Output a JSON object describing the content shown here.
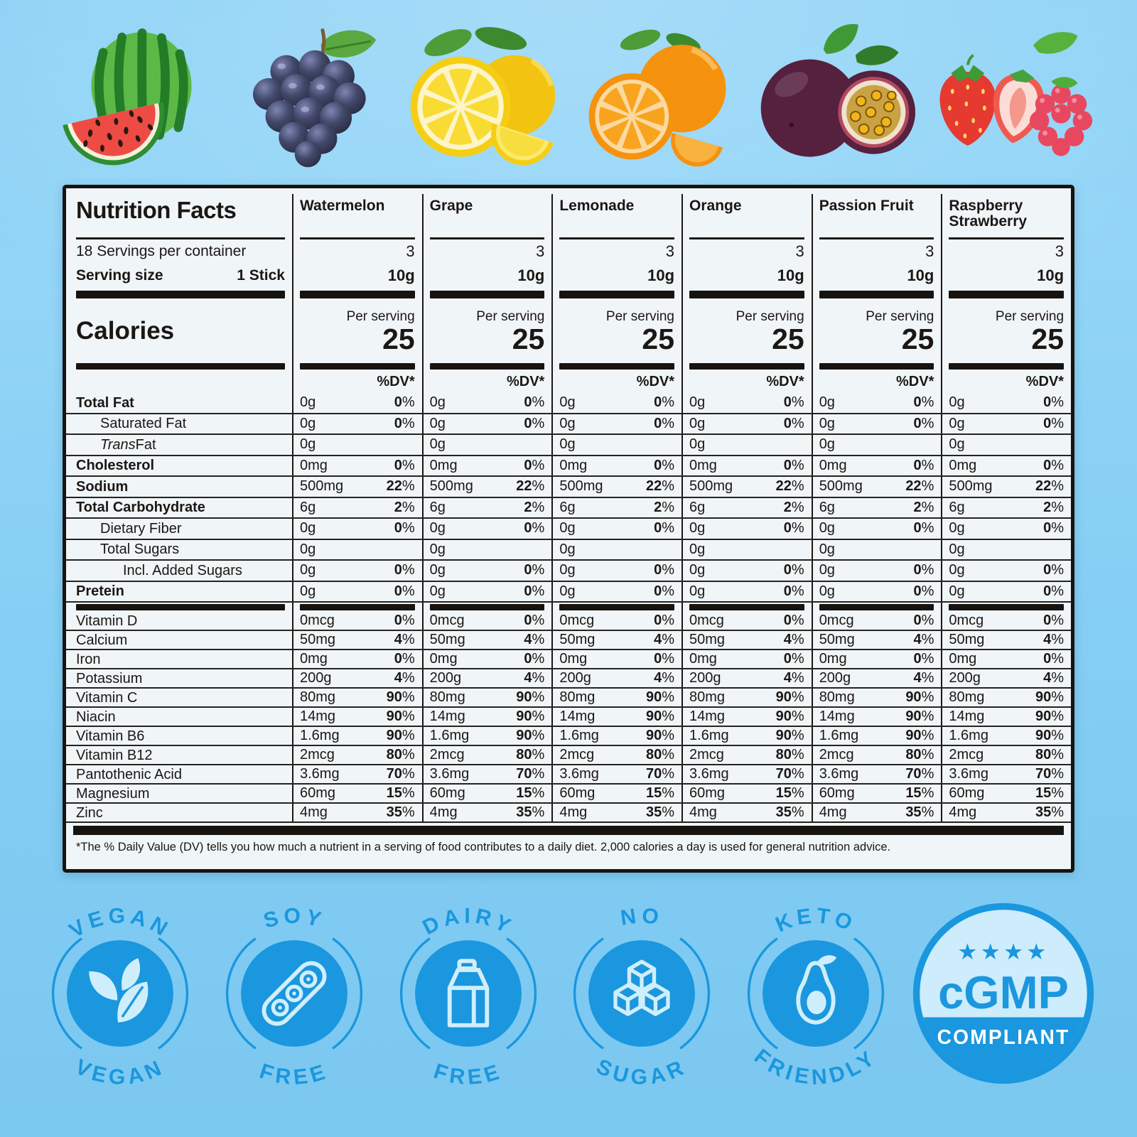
{
  "page": {
    "background_top": "#8dd2f6",
    "background_bottom": "#7ac7f0",
    "accent_blue": "#1a97de",
    "icon_tint": "#cfeefc"
  },
  "fruits": [
    {
      "name": "Watermelon"
    },
    {
      "name": "Grape"
    },
    {
      "name": "Lemon"
    },
    {
      "name": "Orange"
    },
    {
      "name": "Passion Fruit"
    },
    {
      "name": "Strawberry Raspberry"
    }
  ],
  "panel": {
    "title": "Nutrition Facts",
    "servings_line": "18 Servings per container",
    "serving_size_label": "Serving size",
    "serving_size_value": "1 Stick",
    "calories_label": "Calories",
    "per_serving_label": "Per serving",
    "calories_value": "25",
    "dv_header": "%DV*",
    "flavors": [
      {
        "name": "Watermelon",
        "servings": "3",
        "serving_size": "10g"
      },
      {
        "name": "Grape",
        "servings": "3",
        "serving_size": "10g"
      },
      {
        "name": "Lemonade",
        "servings": "3",
        "serving_size": "10g"
      },
      {
        "name": "Orange",
        "servings": "3",
        "serving_size": "10g"
      },
      {
        "name": "Passion Fruit",
        "servings": "3",
        "serving_size": "10g"
      },
      {
        "name": "Raspberry Strawberry",
        "servings": "3",
        "serving_size": "10g"
      }
    ],
    "rows": [
      {
        "label": "Total Fat",
        "bold": true,
        "amount": "0g",
        "dv": "0%"
      },
      {
        "label": "Saturated Fat",
        "indent": 1,
        "amount": "0g",
        "dv": "0%"
      },
      {
        "label": "Trans Fat",
        "indent": 1,
        "italic_first": true,
        "amount": "0g",
        "dv": ""
      },
      {
        "label": "Cholesterol",
        "bold": true,
        "amount": "0mg",
        "dv": "0%"
      },
      {
        "label": "Sodium",
        "bold": true,
        "amount": "500mg",
        "dv": "22%"
      },
      {
        "label": "Total Carbohydrate",
        "bold": true,
        "amount": "6g",
        "dv": "2%"
      },
      {
        "label": "Dietary Fiber",
        "indent": 1,
        "amount": "0g",
        "dv": "0%"
      },
      {
        "label": "Total Sugars",
        "indent": 1,
        "amount": "0g",
        "dv": ""
      },
      {
        "label": "Incl. Added Sugars",
        "indent": 2,
        "amount": "0g",
        "dv": "0%"
      },
      {
        "label": "Pretein",
        "bold": true,
        "amount": "0g",
        "dv": "0%",
        "bar_after": true
      },
      {
        "label": "Vitamin D",
        "vit": true,
        "amount": "0mcg",
        "dv": "0%"
      },
      {
        "label": "Calcium",
        "vit": true,
        "amount": "50mg",
        "dv": "4%"
      },
      {
        "label": "Iron",
        "vit": true,
        "amount": "0mg",
        "dv": "0%"
      },
      {
        "label": "Potassium",
        "vit": true,
        "amount": "200g",
        "dv": "4%"
      },
      {
        "label": "Vitamin C",
        "vit": true,
        "amount": "80mg",
        "dv": "90%"
      },
      {
        "label": "Niacin",
        "vit": true,
        "amount": "14mg",
        "dv": "90%"
      },
      {
        "label": "Vitamin B6",
        "vit": true,
        "amount": "1.6mg",
        "dv": "90%"
      },
      {
        "label": "Vitamin B12",
        "vit": true,
        "amount": "2mcg",
        "dv": "80%"
      },
      {
        "label": "Pantothenic Acid",
        "vit": true,
        "amount": "3.6mg",
        "dv": "70%"
      },
      {
        "label": "Magnesium",
        "vit": true,
        "amount": "60mg",
        "dv": "15%"
      },
      {
        "label": "Zinc",
        "vit": true,
        "amount": "4mg",
        "dv": "35%"
      }
    ],
    "footnote": "*The % Daily Value (DV) tells you how much a nutrient in a serving of food contributes to a daily diet. 2,000 calories a day is used for general nutrition advice."
  },
  "badges": [
    {
      "arc_top": "VEGAN",
      "arc_bottom": "VEGAN",
      "icon": "leaves-icon"
    },
    {
      "arc_top": "SOY",
      "arc_bottom": "FREE",
      "icon": "soybean-icon"
    },
    {
      "arc_top": "DAIRY",
      "arc_bottom": "FREE",
      "icon": "milk-carton-icon"
    },
    {
      "arc_top": "NO",
      "arc_bottom": "SUGAR",
      "icon": "sugar-cubes-icon"
    },
    {
      "arc_top": "KETO",
      "arc_bottom": "FRIENDLY",
      "icon": "avocado-icon"
    }
  ],
  "seal": {
    "title": "cGMP",
    "subtitle": "COMPLIANT",
    "stars": "★★★★"
  }
}
